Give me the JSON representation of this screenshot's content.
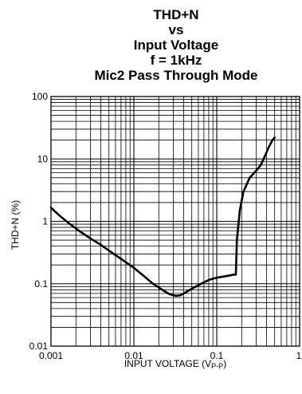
{
  "chart_data": {
    "type": "line",
    "title_lines": [
      "THD+N",
      "vs",
      "Input Voltage",
      "f = 1kHz",
      "Mic2 Pass Through Mode"
    ],
    "xlabel_main": "INPUT VOLTAGE (V",
    "xlabel_sub": "P-P",
    "xlabel_close": ")",
    "ylabel": "THD+N (%)",
    "x_scale": "log",
    "y_scale": "log",
    "xlim": [
      0.001,
      1
    ],
    "ylim": [
      0.01,
      100
    ],
    "x_ticks": [
      "0.001",
      "0.01",
      "0.1",
      "1"
    ],
    "y_ticks": [
      "100",
      "10",
      "1",
      "0.1",
      "0.01"
    ],
    "grid": true,
    "series": [
      {
        "x": [
          0.001,
          0.0013,
          0.0017,
          0.0022,
          0.003,
          0.004,
          0.005,
          0.007,
          0.01,
          0.013,
          0.017,
          0.022,
          0.027,
          0.032,
          0.036,
          0.04,
          0.05,
          0.06,
          0.07,
          0.08,
          0.1,
          0.12,
          0.14,
          0.16,
          0.17,
          0.175,
          0.19,
          0.21,
          0.25,
          0.3,
          0.34,
          0.38,
          0.42,
          0.47,
          0.5
        ],
        "y": [
          1.65,
          1.2,
          0.9,
          0.7,
          0.53,
          0.42,
          0.34,
          0.25,
          0.18,
          0.135,
          0.1,
          0.08,
          0.068,
          0.064,
          0.065,
          0.07,
          0.083,
          0.095,
          0.105,
          0.115,
          0.125,
          0.13,
          0.135,
          0.14,
          0.14,
          0.5,
          1.5,
          3.0,
          5.0,
          6.5,
          8.0,
          11.0,
          15.0,
          20.0,
          22.0
        ]
      }
    ]
  }
}
